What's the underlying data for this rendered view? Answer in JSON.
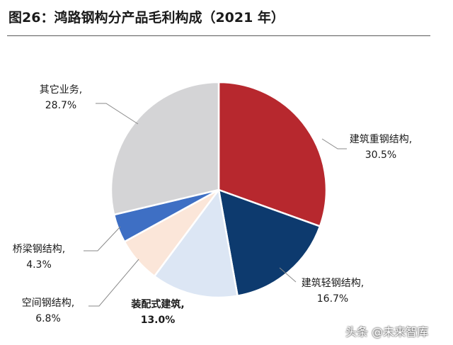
{
  "title": "图26：鸿路钢构分产品毛利构成（2021 年）",
  "watermark": "头条 @未来智库",
  "chart_data": {
    "type": "pie",
    "title": "图26：鸿路钢构分产品毛利构成（2021 年）",
    "slices": [
      {
        "label": "建筑重钢结构,",
        "pct_label": "30.5%",
        "value": 30.5,
        "color": "#b7282e"
      },
      {
        "label": "建筑轻钢结构,",
        "pct_label": "16.7%",
        "value": 16.7,
        "color": "#0d3a6e"
      },
      {
        "label": "装配式建筑,",
        "pct_label": "13.0%",
        "value": 13.0,
        "color": "#dce6f4",
        "bold": true
      },
      {
        "label": "空间钢结构,",
        "pct_label": "6.8%",
        "value": 6.8,
        "color": "#fbe6d9"
      },
      {
        "label": "桥梁钢结构,",
        "pct_label": "4.3%",
        "value": 4.3,
        "color": "#3e6fc4"
      },
      {
        "label": "其它业务,",
        "pct_label": "28.7%",
        "value": 28.7,
        "color": "#d4d4d6"
      }
    ],
    "start_angle": "12 o'clock",
    "direction": "clockwise",
    "legend": "none (callout labels)"
  }
}
